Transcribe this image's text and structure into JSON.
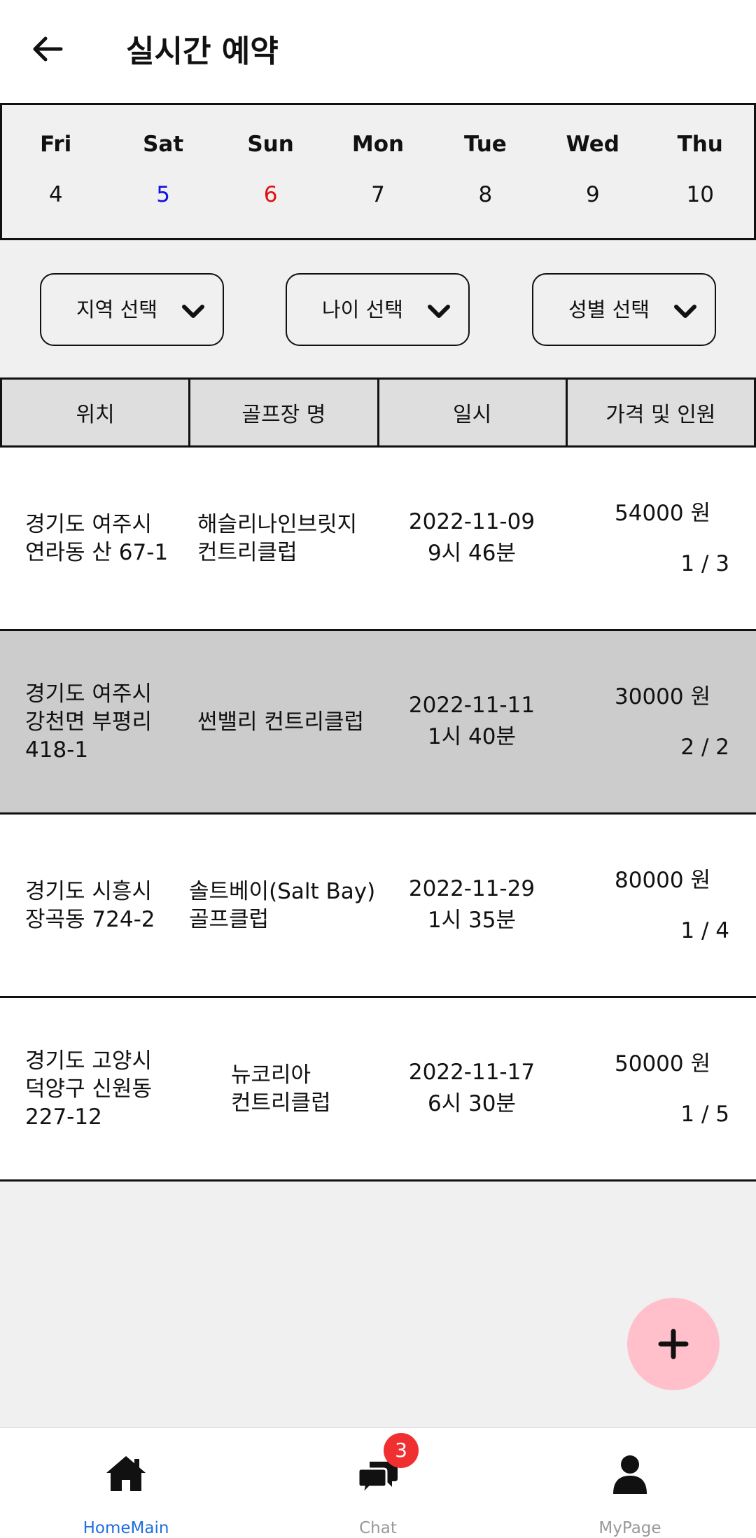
{
  "header": {
    "title": "실시간 예약",
    "back_icon": "arrow-left-icon"
  },
  "calendar": [
    {
      "dow": "Fri",
      "date": "4",
      "color": "#111111"
    },
    {
      "dow": "Sat",
      "date": "5",
      "color": "#1010e0"
    },
    {
      "dow": "Sun",
      "date": "6",
      "color": "#e01010"
    },
    {
      "dow": "Mon",
      "date": "7",
      "color": "#111111"
    },
    {
      "dow": "Tue",
      "date": "8",
      "color": "#111111"
    },
    {
      "dow": "Wed",
      "date": "9",
      "color": "#111111"
    },
    {
      "dow": "Thu",
      "date": "10",
      "color": "#111111"
    }
  ],
  "filters": {
    "region": "지역 선택",
    "age": "나이 선택",
    "gender": "성별 선택"
  },
  "table": {
    "headers": [
      "위치",
      "골프장 명",
      "일시",
      "가격 및 인원"
    ],
    "rows": [
      {
        "location": [
          "경기도 여주시",
          "연라동 산 67-1"
        ],
        "course": [
          "해슬리나인브릿지",
          "컨트리클럽"
        ],
        "date": "2022-11-09",
        "time": "9시 46분",
        "price": "54000 원",
        "people": "1 / 3",
        "highlight": false
      },
      {
        "location": [
          "경기도 여주시",
          "강천면 부평리",
          "418-1"
        ],
        "course": [
          "썬밸리 컨트리클럽"
        ],
        "date": "2022-11-11",
        "time": "1시 40분",
        "price": "30000 원",
        "people": "2 / 2",
        "highlight": true
      },
      {
        "location": [
          "경기도 시흥시",
          "장곡동 724-2"
        ],
        "course": [
          "솔트베이(Salt Bay)",
          "골프클럽"
        ],
        "date": "2022-11-29",
        "time": "1시 35분",
        "price": "80000 원",
        "people": "1 / 4",
        "highlight": false
      },
      {
        "location": [
          "경기도 고양시",
          "덕양구 신원동",
          "227-12"
        ],
        "course": [
          "뉴코리아",
          "컨트리클럽"
        ],
        "date": "2022-11-17",
        "time": "6시 30분",
        "price": "50000 원",
        "people": "1 / 5",
        "highlight": false
      }
    ]
  },
  "fab": {
    "icon": "plus-icon"
  },
  "bottom_nav": {
    "items": [
      {
        "label": "HomeMain",
        "icon": "home-icon",
        "active": true
      },
      {
        "label": "Chat",
        "icon": "chat-icon",
        "active": false
      },
      {
        "label": "MyPage",
        "icon": "user-icon",
        "active": false
      }
    ],
    "chat_badge": "3"
  },
  "colors": {
    "accent": "#1e6fe0",
    "fab": "#ffc0cb",
    "badge": "#f03030",
    "row_highlight": "#cccccc"
  }
}
